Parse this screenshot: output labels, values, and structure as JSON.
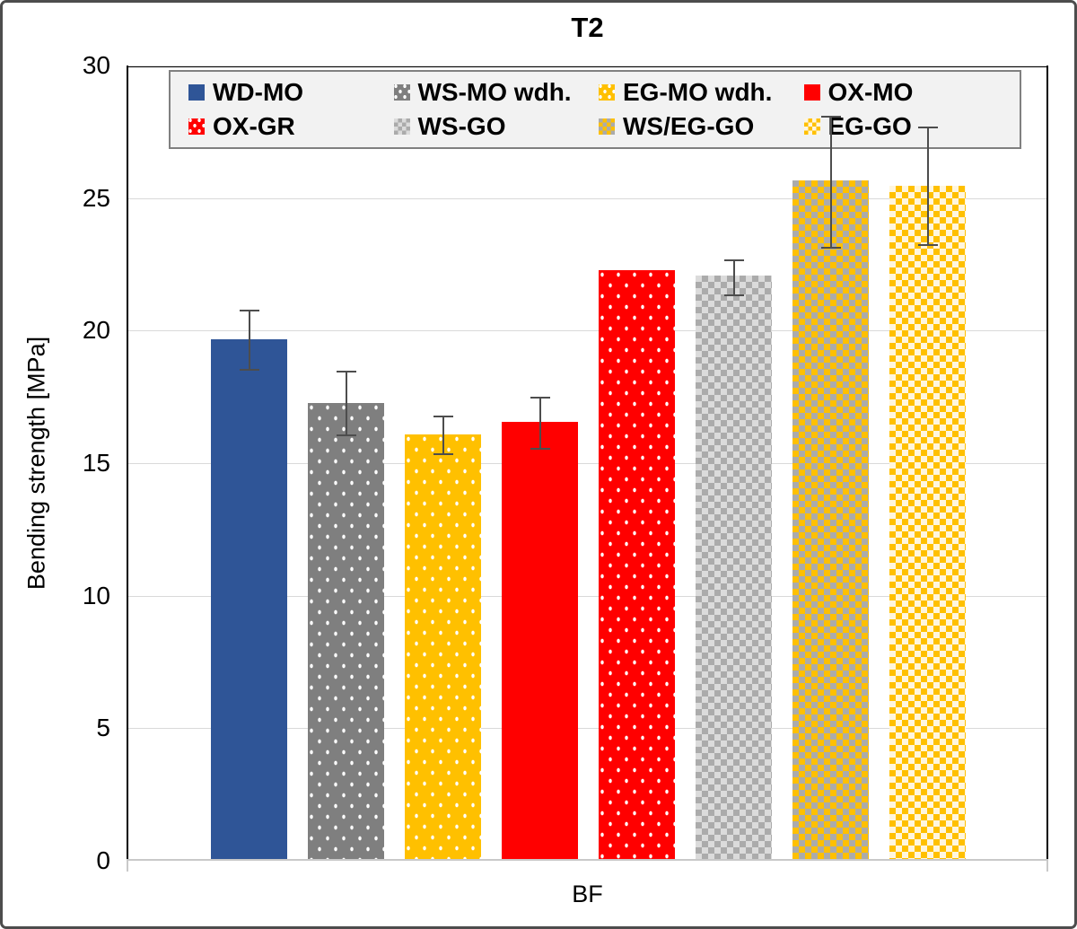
{
  "chart_data": {
    "type": "bar",
    "title": "T2",
    "xlabel": "BF",
    "ylabel": "Bending strength [MPa]",
    "ylim": [
      0,
      30
    ],
    "y_tick_step": 5,
    "y_ticks": [
      0,
      5,
      10,
      15,
      20,
      25,
      30
    ],
    "grid": true,
    "legend_position": "top-inside",
    "categories": [
      "WD-MO",
      "WS-MO wdh.",
      "EG-MO wdh.",
      "OX-MO",
      "OX-GR",
      "WS-GO",
      "WS/EG-GO",
      "EG-GO"
    ],
    "series": [
      {
        "name": "Bending strength",
        "values": [
          19.6,
          17.2,
          16.0,
          16.5,
          22.2,
          22.0,
          25.6,
          25.4
        ],
        "error_hi": [
          20.8,
          18.5,
          16.8,
          17.5,
          null,
          22.7,
          28.1,
          27.7
        ],
        "error_lo": [
          18.5,
          16.0,
          15.3,
          15.5,
          null,
          21.3,
          23.1,
          23.2
        ]
      }
    ]
  },
  "legend": {
    "items": [
      {
        "label": "WD-MO",
        "pattern": "solid-blue"
      },
      {
        "label": "WS-MO wdh.",
        "pattern": "dots-gray"
      },
      {
        "label": "EG-MO wdh.",
        "pattern": "dots-gold"
      },
      {
        "label": "OX-MO",
        "pattern": "solid-red"
      },
      {
        "label": "OX-GR",
        "pattern": "dots-red"
      },
      {
        "label": "WS-GO",
        "pattern": "check-gray"
      },
      {
        "label": "WS/EG-GO",
        "pattern": "check-goldgray"
      },
      {
        "label": "EG-GO",
        "pattern": "check-goldwhite"
      }
    ]
  },
  "colors": {
    "blue": "#2F5597",
    "red": "#FF0000",
    "gold": "#FFC000",
    "gray": "#7F7F7F",
    "check_mid": "#ABABAB",
    "check_light": "#DBDBDB",
    "cream": "#FFF6DE",
    "grid": "#D9D9D9",
    "error": "#4D4D4D",
    "legend_fill": "#F2F2F2",
    "legend_border": "#808080"
  }
}
